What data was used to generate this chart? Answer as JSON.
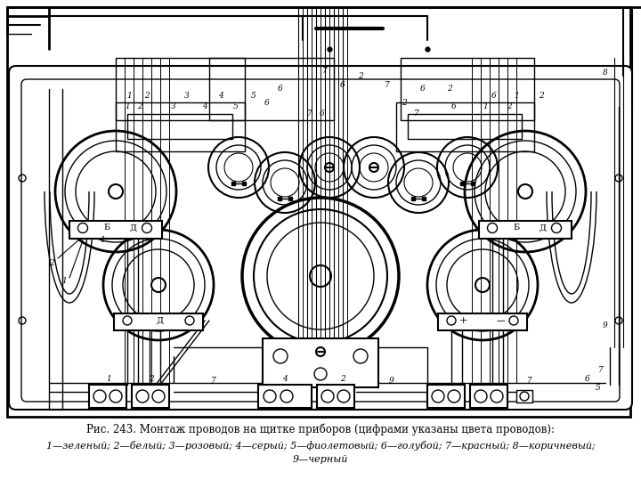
{
  "title": "Рис. 243. Монтаж проводов на щитке приборов (цифрами указаны цвета проводов):",
  "legend_line1": "1—зеленый; 2—белый; 3—розовый; 4—серый; 5—фиолетовый; 6—голубой; 7—красный; 8—коричневый;",
  "legend_line2": "9—черный",
  "bg_color": "#ffffff",
  "line_color": "#000000"
}
